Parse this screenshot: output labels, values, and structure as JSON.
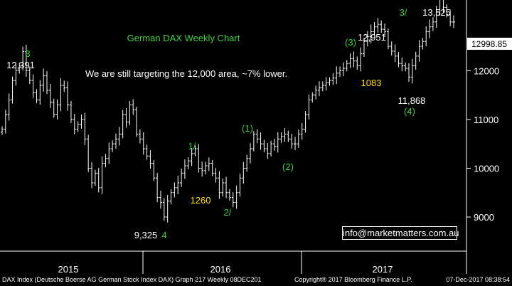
{
  "chart_data": {
    "type": "candlestick",
    "title": "German DAX Weekly Chart",
    "subtitle": "We are still targeting the 12,000 area, ~7% lower.",
    "y_axis": {
      "position": "right",
      "ticks": [
        9000,
        10000,
        11000,
        12000
      ],
      "ylim": [
        8300,
        13450
      ]
    },
    "x_axis": {
      "labels": [
        "2015",
        "2016",
        "2017"
      ]
    },
    "last_price": "12998.85",
    "grid": false,
    "series": [
      {
        "values": [
          10800,
          11100,
          11400,
          11800,
          12000,
          12100,
          12391,
          12000,
          11800,
          11550,
          11400,
          11700,
          11900,
          11600,
          11350,
          11100,
          11300,
          11700,
          11650,
          11300,
          11000,
          10800,
          10900,
          11000,
          10600,
          10000,
          9700,
          9900,
          9600,
          10100,
          10200,
          10400,
          10500,
          10600,
          10700,
          11100,
          10950,
          11300,
          11200,
          10700,
          10600,
          10400,
          10250,
          10100,
          9800,
          9400,
          9300,
          9000,
          9325,
          9500,
          9600,
          9700,
          9900,
          10050,
          10150,
          10300,
          10400,
          10000,
          9950,
          10050,
          10100,
          9900,
          9800,
          9500,
          9700,
          9500,
          9400,
          9300,
          9500,
          9800,
          10000,
          10200,
          10400,
          10700,
          10600,
          10500,
          10400,
          10300,
          10500,
          10450,
          10600,
          10650,
          10700,
          10600,
          10500,
          10500,
          10700,
          10800,
          11100,
          11400,
          11500,
          11600,
          11650,
          11700,
          11750,
          11800,
          11850,
          11950,
          12000,
          12050,
          12150,
          12250,
          12200,
          12100,
          12350,
          12600,
          12700,
          12800,
          12900,
          12951,
          12850,
          12800,
          12500,
          12400,
          12300,
          12150,
          12100,
          12050,
          11868,
          12100,
          12300,
          12500,
          12600,
          12800,
          12900,
          13000,
          13200,
          13525,
          13300,
          13150,
          13000,
          12999
        ]
      }
    ],
    "annotations": [
      {
        "label": "12,391",
        "kind": "value"
      },
      {
        "label": "3",
        "kind": "wave"
      },
      {
        "label": "9,325",
        "kind": "value"
      },
      {
        "label": "4",
        "kind": "wave"
      },
      {
        "label": "1/",
        "kind": "wave"
      },
      {
        "label": "1260",
        "kind": "move"
      },
      {
        "label": "2/",
        "kind": "wave"
      },
      {
        "label": "(1)",
        "kind": "wave"
      },
      {
        "label": "(2)",
        "kind": "wave"
      },
      {
        "label": "(3)",
        "kind": "wave"
      },
      {
        "label": "12,951",
        "kind": "value"
      },
      {
        "label": "1083",
        "kind": "move"
      },
      {
        "label": "11,868",
        "kind": "value"
      },
      {
        "label": "(4)",
        "kind": "wave"
      },
      {
        "label": "3/",
        "kind": "wave"
      },
      {
        "label": "13,525",
        "kind": "value"
      }
    ]
  },
  "footer": {
    "left": "DAX Index (Deutsche Boerse AG German Stock Index DAX) Graph 217 Weekly 08DEC201",
    "middle": "Copyright® 2017 Bloomberg Finance L.P.",
    "right": "07-Dec-2017 08:38:54"
  },
  "email": "info@marketmatters.com.au",
  "colors": {
    "background": "#000000",
    "price": "#ffffff",
    "title": "#3fd13f",
    "wave": "#3fd13f",
    "move": "#ffe000",
    "label": "#ffffff"
  }
}
